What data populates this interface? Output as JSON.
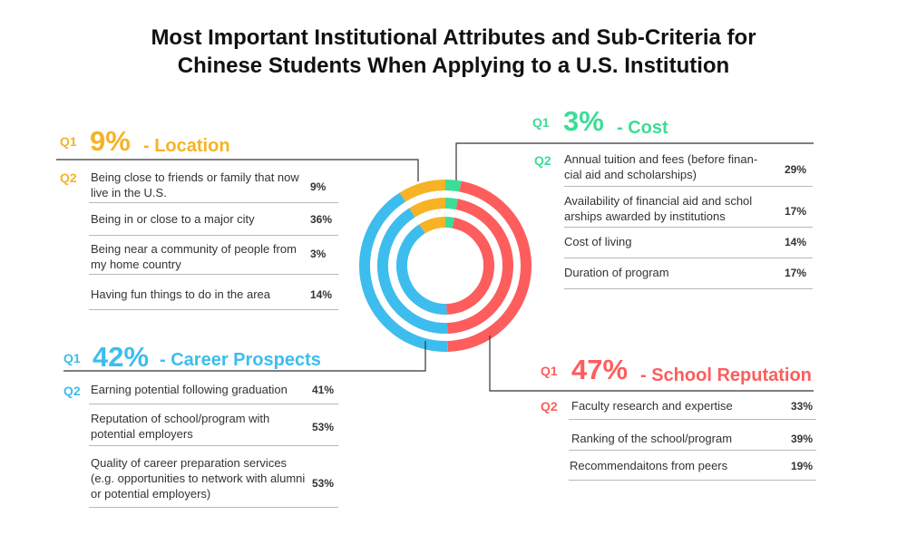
{
  "title": {
    "line1": "Most Important Institutional Attributes and Sub-Criteria for",
    "line2": "Chinese Students When Applying to a U.S. Institution"
  },
  "colors": {
    "location": "#f5b325",
    "cost": "#3ddc97",
    "career": "#3dbdee",
    "reputation": "#fd5d5d"
  },
  "chart_data": {
    "type": "pie",
    "subtype": "concentric-rings",
    "title": "Most Important Institutional Attributes and Sub-Criteria for Chinese Students When Applying to a U.S. Institution",
    "q1_label": "Q1",
    "q2_label": "Q2",
    "categories": [
      "Location",
      "Cost",
      "Career Prospects",
      "School Reputation"
    ],
    "values": [
      9,
      3,
      42,
      47
    ],
    "rings": 3,
    "groups": {
      "location": {
        "percent": "9%",
        "name": "- Location",
        "items": [
          {
            "label": "Being close to friends or family that now live in the U.S.",
            "value": "9%"
          },
          {
            "label": "Being in or close to a major city",
            "value": "36%"
          },
          {
            "label": "Being near a community of people from my home country",
            "value": "3%"
          },
          {
            "label": "Having fun things to do in the area",
            "value": "14%"
          }
        ]
      },
      "cost": {
        "percent": "3%",
        "name": "- Cost",
        "items": [
          {
            "label": "Annual tuition and fees (before finan-cial aid and scholarships)",
            "value": "29%"
          },
          {
            "label": "Availability of financial aid and schol arships awarded by institutions",
            "value": "17%"
          },
          {
            "label": "Cost of living",
            "value": "14%"
          },
          {
            "label": "Duration of program",
            "value": "17%"
          }
        ]
      },
      "career": {
        "percent": "42%",
        "name": "- Career Prospects",
        "items": [
          {
            "label": "Earning potential following graduation",
            "value": "41%"
          },
          {
            "label": "Reputation of school/program with potential employers",
            "value": "53%"
          },
          {
            "label": "Quality of career preparation services (e.g. opportunities to network with alumni or potential employers)",
            "value": "53%"
          }
        ]
      },
      "reputation": {
        "percent": "47%",
        "name": "- School Reputation",
        "items": [
          {
            "label": "Faculty research and expertise",
            "value": "33%"
          },
          {
            "label": "Ranking of the school/program",
            "value": "39%"
          },
          {
            "label": "Recommendaitons from peers",
            "value": "19%"
          }
        ]
      }
    }
  }
}
